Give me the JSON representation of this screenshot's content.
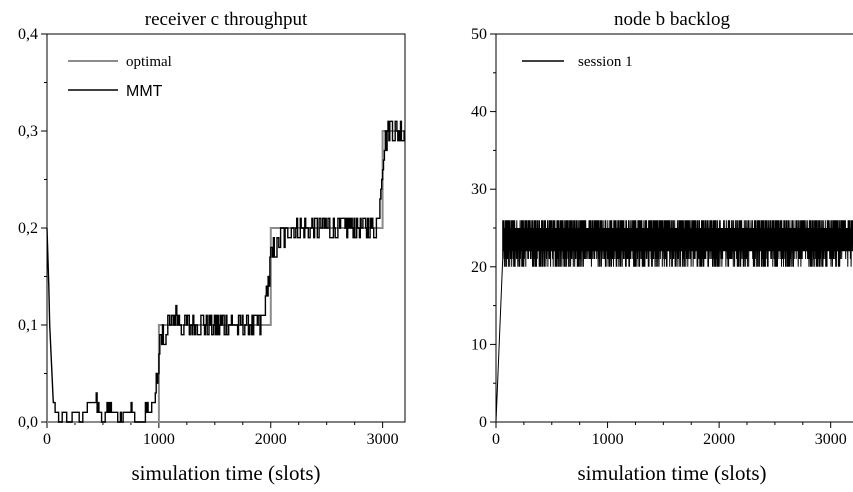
{
  "chart_data": [
    {
      "type": "line",
      "title": "receiver c throughput",
      "xlabel": "simulation time (slots)",
      "ylabel": "",
      "xlim": [
        0,
        3200
      ],
      "ylim": [
        0,
        0.4
      ],
      "xticks": [
        "0",
        "1000",
        "2000",
        "3000"
      ],
      "yticks": [
        "0,0",
        "0,1",
        "0,2",
        "0,3",
        "0,4"
      ],
      "legend_position": "top-left",
      "series": [
        {
          "name": "optimal",
          "color": "#8c8c8c",
          "style": "step",
          "points": [
            [
              0,
              0.0
            ],
            [
              1000,
              0.0
            ],
            [
              1000,
              0.1
            ],
            [
              2000,
              0.1
            ],
            [
              2000,
              0.2
            ],
            [
              3000,
              0.2
            ],
            [
              3000,
              0.3
            ],
            [
              3200,
              0.3
            ]
          ]
        },
        {
          "name": "MMT",
          "color": "#000000",
          "style": "noisy",
          "points": [
            [
              0,
              0.2
            ],
            [
              25,
              0.1
            ],
            [
              55,
              0.02
            ],
            [
              80,
              0.01
            ],
            [
              120,
              0.0
            ],
            [
              150,
              0.01
            ],
            [
              200,
              0.0
            ],
            [
              260,
              0.01
            ],
            [
              300,
              0.0
            ],
            [
              340,
              0.01
            ],
            [
              380,
              0.02
            ],
            [
              420,
              0.02
            ],
            [
              460,
              0.01
            ],
            [
              500,
              0.0
            ],
            [
              540,
              0.01
            ],
            [
              600,
              0.01
            ],
            [
              650,
              0.0
            ],
            [
              700,
              0.01
            ],
            [
              760,
              0.01
            ],
            [
              800,
              0.0
            ],
            [
              850,
              0.0
            ],
            [
              900,
              0.01
            ],
            [
              960,
              0.02
            ],
            [
              990,
              0.05
            ],
            [
              1010,
              0.08
            ],
            [
              1050,
              0.09
            ],
            [
              1100,
              0.1
            ],
            [
              1150,
              0.11
            ],
            [
              1200,
              0.1
            ],
            [
              1300,
              0.1
            ],
            [
              1400,
              0.095
            ],
            [
              1500,
              0.1
            ],
            [
              1600,
              0.095
            ],
            [
              1700,
              0.1
            ],
            [
              1800,
              0.1
            ],
            [
              1900,
              0.1
            ],
            [
              1950,
              0.12
            ],
            [
              1990,
              0.16
            ],
            [
              2030,
              0.18
            ],
            [
              2100,
              0.19
            ],
            [
              2200,
              0.2
            ],
            [
              2300,
              0.205
            ],
            [
              2400,
              0.2
            ],
            [
              2500,
              0.2
            ],
            [
              2600,
              0.2
            ],
            [
              2700,
              0.205
            ],
            [
              2800,
              0.2
            ],
            [
              2900,
              0.195
            ],
            [
              2960,
              0.21
            ],
            [
              2990,
              0.26
            ],
            [
              3020,
              0.29
            ],
            [
              3080,
              0.305
            ],
            [
              3150,
              0.3
            ],
            [
              3200,
              0.3
            ]
          ]
        }
      ]
    },
    {
      "type": "line",
      "title": "node b backlog",
      "xlabel": "simulation time (slots)",
      "ylabel": "",
      "xlim": [
        0,
        3200
      ],
      "ylim": [
        0,
        50
      ],
      "xticks": [
        "0",
        "1000",
        "2000",
        "3000"
      ],
      "yticks": [
        "0",
        "10",
        "20",
        "30",
        "40",
        "50"
      ],
      "legend_position": "top-left",
      "series": [
        {
          "name": "session 1",
          "color": "#000000",
          "style": "oscillating",
          "rise": [
            [
              0,
              0
            ],
            [
              60,
              21
            ]
          ],
          "band": {
            "from": 60,
            "to": 3200,
            "low": 20,
            "high": 26
          }
        }
      ]
    }
  ]
}
